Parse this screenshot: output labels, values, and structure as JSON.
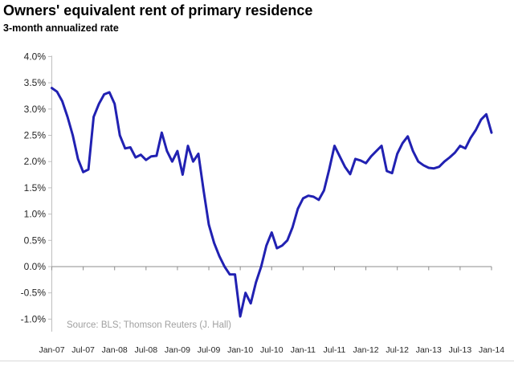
{
  "title": "Owners' equivalent rent of primary residence",
  "subtitle": "3-month annualized rate",
  "source": "Source: BLS; Thomson Reuters (J. Hall)",
  "chart_data": {
    "type": "line",
    "title": "Owners' equivalent rent of primary residence",
    "subtitle": "3-month annualized rate",
    "xlabel": "",
    "ylabel": "",
    "ylim": [
      -1.0,
      4.0
    ],
    "ytick_step": 0.5,
    "grid": "off",
    "legend": "none",
    "y_tick_labels": [
      "4.0%",
      "3.5%",
      "3.0%",
      "2.5%",
      "2.0%",
      "1.5%",
      "1.0%",
      "0.5%",
      "0.0%",
      "-0.5%",
      "-1.0%"
    ],
    "y_tick_values": [
      4.0,
      3.5,
      3.0,
      2.5,
      2.0,
      1.5,
      1.0,
      0.5,
      0.0,
      -0.5,
      -1.0
    ],
    "x_tick_labels": [
      "Jan-07",
      "Jul-07",
      "Jan-08",
      "Jul-08",
      "Jan-09",
      "Jul-09",
      "Jan-10",
      "Jul-10",
      "Jan-11",
      "Jul-11",
      "Jan-12",
      "Jul-12",
      "Jan-13",
      "Jul-13",
      "Jan-14"
    ],
    "x_tick_every_points": 6,
    "x_range_months": [
      "Jan-07",
      "Jan-14"
    ],
    "series": [
      {
        "name": "Owners' equivalent rent, 3-month annualized rate",
        "frequency": "monthly",
        "values": [
          3.4,
          3.33,
          3.15,
          2.85,
          2.5,
          2.05,
          1.8,
          1.85,
          2.85,
          3.1,
          3.28,
          3.32,
          3.1,
          2.5,
          2.25,
          2.27,
          2.08,
          2.13,
          2.03,
          2.1,
          2.11,
          2.55,
          2.2,
          2.0,
          2.2,
          1.75,
          2.3,
          2.0,
          2.15,
          1.45,
          0.8,
          0.45,
          0.2,
          0.0,
          -0.15,
          -0.15,
          -0.95,
          -0.5,
          -0.7,
          -0.3,
          0.0,
          0.4,
          0.65,
          0.35,
          0.4,
          0.5,
          0.75,
          1.1,
          1.3,
          1.35,
          1.33,
          1.27,
          1.45,
          1.85,
          2.3,
          2.1,
          1.9,
          1.76,
          2.05,
          2.02,
          1.97,
          2.1,
          2.2,
          2.3,
          1.82,
          1.78,
          2.15,
          2.35,
          2.48,
          2.2,
          2.0,
          1.93,
          1.88,
          1.87,
          1.9,
          2.0,
          2.08,
          2.17,
          2.3,
          2.25,
          2.45,
          2.6,
          2.8,
          2.9,
          2.55
        ]
      }
    ],
    "colors": {
      "line": "#2121b2",
      "value_axis": "#bfbfbf",
      "category_axis": "#8c8c8c",
      "bottom_border": "#d9d9d9",
      "axis_text": "#262626",
      "source_text": "#a0a0a0",
      "background": "#ffffff"
    }
  }
}
